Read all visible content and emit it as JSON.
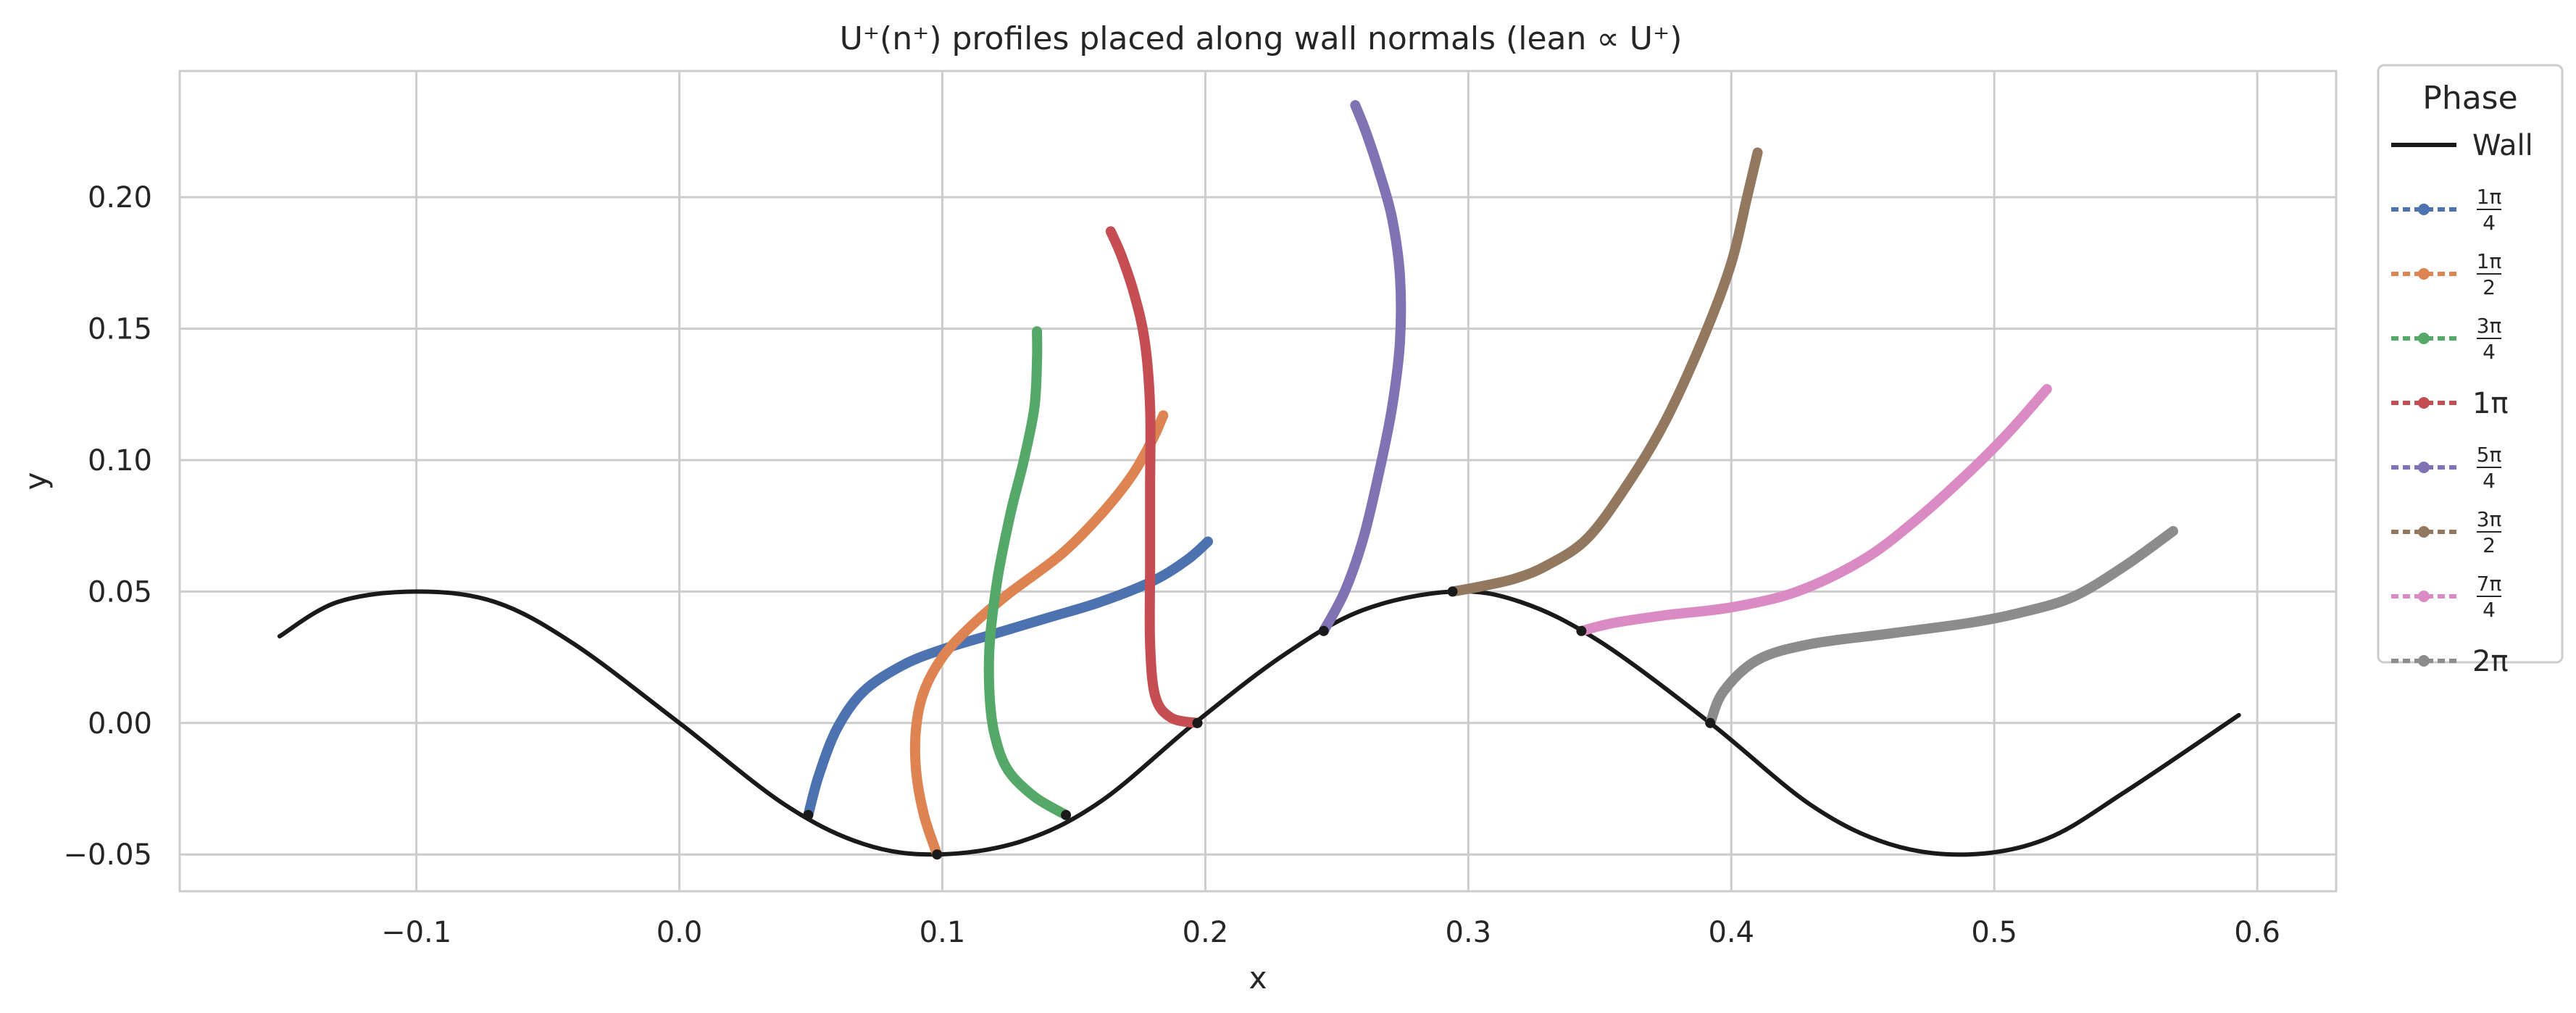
{
  "chart_data": {
    "type": "line",
    "title": "U⁺(n⁺) profiles placed along wall normals (lean ∝ U⁺)",
    "xlabel": "x",
    "ylabel": "y",
    "xlim": [
      -0.19,
      0.63
    ],
    "ylim": [
      -0.064,
      0.248
    ],
    "xticks": [
      -0.1,
      0.0,
      0.1,
      0.2,
      0.3,
      0.4,
      0.5,
      0.6
    ],
    "xtick_labels": [
      "−0.1",
      "0.0",
      "0.1",
      "0.2",
      "0.3",
      "0.4",
      "0.5",
      "0.6"
    ],
    "yticks": [
      -0.05,
      0.0,
      0.05,
      0.1,
      0.15,
      0.2
    ],
    "ytick_labels": [
      "−0.05",
      "0.00",
      "0.05",
      "0.10",
      "0.15",
      "0.20"
    ],
    "grid": true,
    "legend": {
      "title": "Phase",
      "placement": "outside-top-right"
    },
    "wall": {
      "name": "Wall",
      "color": "#1a1a1a",
      "x": [
        -0.152,
        -0.13,
        -0.1,
        -0.07,
        -0.04,
        0.0,
        0.04,
        0.07,
        0.098,
        0.13,
        0.16,
        0.196,
        0.23,
        0.26,
        0.294,
        0.32,
        0.35,
        0.392,
        0.43,
        0.46,
        0.49,
        0.52,
        0.55,
        0.593
      ],
      "y": [
        0.033,
        0.046,
        0.05,
        0.046,
        0.03,
        0.0,
        -0.031,
        -0.046,
        -0.05,
        -0.045,
        -0.03,
        0.0,
        0.026,
        0.043,
        0.05,
        0.046,
        0.031,
        0.0,
        -0.031,
        -0.046,
        -0.05,
        -0.044,
        -0.026,
        0.003
      ]
    },
    "series": [
      {
        "name": "1π/4",
        "color": "#4c72b0",
        "marker": "circle",
        "x": [
          0.049,
          0.053,
          0.06,
          0.07,
          0.085,
          0.1,
          0.12,
          0.14,
          0.16,
          0.18,
          0.193,
          0.201
        ],
        "y": [
          -0.035,
          -0.02,
          -0.002,
          0.012,
          0.022,
          0.028,
          0.034,
          0.04,
          0.046,
          0.054,
          0.062,
          0.069
        ]
      },
      {
        "name": "1π/2",
        "color": "#dd8452",
        "marker": "square",
        "x": [
          0.098,
          0.093,
          0.09,
          0.09,
          0.093,
          0.1,
          0.11,
          0.125,
          0.145,
          0.16,
          0.172,
          0.18,
          0.184
        ],
        "y": [
          -0.05,
          -0.035,
          -0.018,
          -0.002,
          0.012,
          0.025,
          0.036,
          0.049,
          0.064,
          0.079,
          0.094,
          0.108,
          0.117
        ]
      },
      {
        "name": "3π/4",
        "color": "#55a868",
        "marker": "triangle-up",
        "x": [
          0.147,
          0.135,
          0.125,
          0.12,
          0.118,
          0.118,
          0.121,
          0.126,
          0.131,
          0.135,
          0.136,
          0.136
        ],
        "y": [
          -0.035,
          -0.028,
          -0.018,
          -0.005,
          0.01,
          0.03,
          0.055,
          0.08,
          0.1,
          0.12,
          0.138,
          0.149
        ]
      },
      {
        "name": "1π",
        "color": "#c44e52",
        "marker": "diamond",
        "x": [
          0.197,
          0.187,
          0.181,
          0.179,
          0.179,
          0.179,
          0.179,
          0.177,
          0.173,
          0.168,
          0.164
        ],
        "y": [
          0.0,
          0.002,
          0.01,
          0.03,
          0.06,
          0.09,
          0.12,
          0.145,
          0.163,
          0.178,
          0.187
        ]
      },
      {
        "name": "5π/4",
        "color": "#8172b3",
        "marker": "triangle-down",
        "x": [
          0.245,
          0.253,
          0.26,
          0.266,
          0.271,
          0.274,
          0.274,
          0.271,
          0.266,
          0.261,
          0.257
        ],
        "y": [
          0.035,
          0.05,
          0.07,
          0.095,
          0.12,
          0.145,
          0.17,
          0.192,
          0.21,
          0.225,
          0.235
        ]
      },
      {
        "name": "3π/2",
        "color": "#937860",
        "marker": "triangle-right",
        "x": [
          0.294,
          0.305,
          0.318,
          0.33,
          0.345,
          0.36,
          0.375,
          0.39,
          0.4,
          0.406,
          0.41
        ],
        "y": [
          0.05,
          0.052,
          0.055,
          0.06,
          0.07,
          0.09,
          0.115,
          0.148,
          0.175,
          0.2,
          0.217
        ]
      },
      {
        "name": "7π/4",
        "color": "#da8bc3",
        "marker": "triangle-left",
        "x": [
          0.343,
          0.355,
          0.375,
          0.4,
          0.425,
          0.45,
          0.47,
          0.49,
          0.505,
          0.52
        ],
        "y": [
          0.035,
          0.038,
          0.041,
          0.044,
          0.05,
          0.062,
          0.077,
          0.095,
          0.11,
          0.127
        ]
      },
      {
        "name": "2π",
        "color": "#8c8c8c",
        "marker": "pentagon",
        "x": [
          0.392,
          0.397,
          0.41,
          0.43,
          0.46,
          0.49,
          0.51,
          0.53,
          0.55,
          0.568
        ],
        "y": [
          0.0,
          0.012,
          0.024,
          0.03,
          0.034,
          0.038,
          0.042,
          0.048,
          0.06,
          0.073
        ]
      }
    ]
  }
}
